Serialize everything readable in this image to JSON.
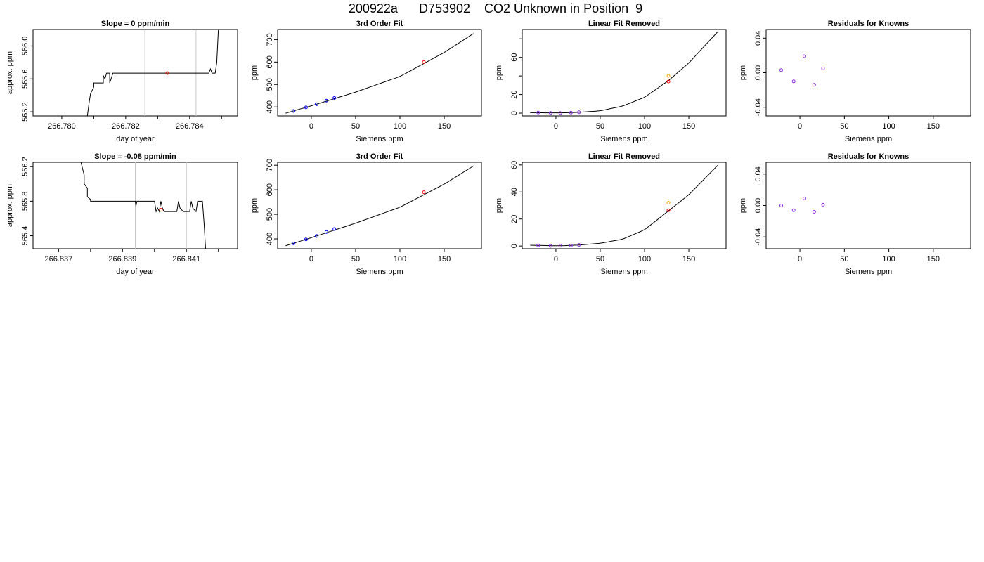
{
  "figure_title": "200922a      D753902    CO2 Unknown in Position  9",
  "colors": {
    "unknown_red": "#ff0000",
    "known_blue": "#0000ff",
    "known_purple": "#8a2be2",
    "orange": "#ffa500",
    "gridline": "#c8c8c8"
  },
  "chart_data": [
    {
      "type": "line",
      "title": "Slope =  0  ppm/min",
      "xlabel": "day of year",
      "ylabel": "approx. ppm",
      "xlim": [
        266.7791,
        266.7855
      ],
      "ylim": [
        565.15,
        566.2
      ],
      "xticks": [
        266.78,
        266.781,
        266.782,
        266.783,
        266.784,
        266.785
      ],
      "xtick_labels": [
        "266.780",
        "",
        "266.782",
        "",
        "266.784",
        ""
      ],
      "yticks": [
        565.2,
        565.6,
        566.0
      ],
      "ytick_labels": [
        "565.2",
        "565.6",
        "566.0"
      ],
      "vlines": [
        266.7826,
        266.7842
      ],
      "line": {
        "x": [
          266.7808,
          266.78085,
          266.7809,
          266.781,
          266.781,
          266.7811,
          266.7812,
          266.7813,
          266.7813,
          266.78135,
          266.7814,
          266.78145,
          266.7815,
          266.7815,
          266.7816,
          266.78165,
          266.7817,
          266.7818,
          266.7818,
          266.7819,
          266.782,
          266.783,
          266.784,
          266.7845,
          266.7846,
          266.78465,
          266.7847,
          266.7847,
          266.7848,
          266.78485,
          266.7849
        ],
        "y": [
          565.15,
          565.3,
          565.42,
          565.5,
          565.55,
          565.55,
          565.55,
          565.55,
          565.64,
          565.6,
          565.67,
          565.67,
          565.67,
          565.55,
          565.67,
          565.67,
          565.67,
          565.67,
          565.67,
          565.67,
          565.67,
          565.67,
          565.67,
          565.67,
          565.67,
          565.72,
          565.67,
          565.67,
          565.67,
          565.8,
          566.2
        ]
      },
      "points": [
        {
          "x": 266.7833,
          "y": 565.67,
          "color": "#ff0000"
        }
      ]
    },
    {
      "type": "scatter",
      "title": "3rd Order Fit",
      "xlabel": "Siemens ppm",
      "ylabel": "ppm",
      "xlim": [
        -38,
        192
      ],
      "ylim": [
        360,
        745
      ],
      "xticks": [
        0,
        50,
        100,
        150
      ],
      "xtick_labels": [
        "0",
        "50",
        "100",
        "150"
      ],
      "yticks": [
        400,
        500,
        600,
        700
      ],
      "ytick_labels": [
        "400",
        "500",
        "600",
        "700"
      ],
      "curve": {
        "x": [
          -29,
          0,
          50,
          100,
          150,
          183
        ],
        "y": [
          372.0,
          405.0,
          466.1,
          535.6,
          642.6,
          727.0
        ]
      },
      "points": [
        {
          "x": -20,
          "y": 382,
          "color": "#0000ff"
        },
        {
          "x": -6,
          "y": 398,
          "color": "#0000ff"
        },
        {
          "x": 6,
          "y": 412,
          "color": "#0000ff"
        },
        {
          "x": 17,
          "y": 428,
          "color": "#0000ff"
        },
        {
          "x": 26,
          "y": 440,
          "color": "#0000ff"
        },
        {
          "x": 127,
          "y": 600,
          "color": "#ff0000"
        }
      ]
    },
    {
      "type": "scatter",
      "title": "Linear Fit Removed",
      "xlabel": "Siemens ppm",
      "ylabel": "ppm",
      "xlim": [
        -38,
        192
      ],
      "ylim": [
        -3,
        90
      ],
      "xticks": [
        0,
        50,
        100,
        150
      ],
      "xtick_labels": [
        "0",
        "50",
        "100",
        "150"
      ],
      "yticks": [
        0,
        20,
        40,
        60,
        80
      ],
      "ytick_labels": [
        "0",
        "20",
        "",
        "60",
        ""
      ],
      "curve": {
        "x": [
          -29,
          -22,
          -10,
          0,
          10,
          25,
          50,
          75,
          100,
          127,
          150,
          183
        ],
        "y": [
          0.5,
          0.5,
          0.3,
          0.3,
          0.4,
          0.8,
          2.5,
          7.5,
          17.0,
          35.0,
          54.0,
          88.0
        ]
      },
      "points": [
        {
          "x": -20,
          "y": 0.6,
          "color": "#8a2be2"
        },
        {
          "x": -6,
          "y": 0.2,
          "color": "#8a2be2"
        },
        {
          "x": 5,
          "y": 0.1,
          "color": "#8a2be2"
        },
        {
          "x": 17,
          "y": 0.5,
          "color": "#8a2be2"
        },
        {
          "x": 26,
          "y": 1.0,
          "color": "#8a2be2"
        },
        {
          "x": 127,
          "y": 40,
          "color": "#ffa500"
        },
        {
          "x": 127,
          "y": 34,
          "color": "#ff0000"
        }
      ]
    },
    {
      "type": "scatter",
      "title": "Residuals for Knowns",
      "xlabel": "Siemens ppm",
      "ylabel": "ppm",
      "xlim": [
        -38,
        192
      ],
      "ylim": [
        -0.05,
        0.05
      ],
      "xticks": [
        0,
        50,
        100,
        150
      ],
      "xtick_labels": [
        "0",
        "50",
        "100",
        "150"
      ],
      "yticks": [
        -0.04,
        0.0,
        0.04
      ],
      "ytick_labels": [
        "-0.04",
        "0.00",
        "0.04"
      ],
      "points": [
        {
          "x": -21,
          "y": 0.003,
          "color": "#8a2be2"
        },
        {
          "x": -7,
          "y": -0.01,
          "color": "#8a2be2"
        },
        {
          "x": 5,
          "y": 0.019,
          "color": "#8a2be2"
        },
        {
          "x": 16,
          "y": -0.014,
          "color": "#8a2be2"
        },
        {
          "x": 26,
          "y": 0.005,
          "color": "#8a2be2"
        }
      ]
    },
    {
      "type": "line",
      "title": "Slope =  -0.08  ppm/min",
      "xlabel": "day of year",
      "ylabel": "approx. ppm",
      "xlim": [
        266.8362,
        266.8426
      ],
      "ylim": [
        565.25,
        566.25
      ],
      "xticks": [
        266.837,
        266.838,
        266.839,
        266.84,
        266.841,
        266.842
      ],
      "xtick_labels": [
        "266.837",
        "",
        "266.839",
        "",
        "266.841",
        ""
      ],
      "yticks": [
        565.4,
        565.8,
        566.2
      ],
      "ytick_labels": [
        "565.4",
        "565.8",
        "566.2"
      ],
      "vlines": [
        266.8394,
        266.841
      ],
      "line": {
        "x": [
          266.8377,
          266.8378,
          266.8378,
          266.8379,
          266.8379,
          266.838,
          266.838,
          266.8384,
          266.8394,
          266.83942,
          266.83945,
          266.8396,
          266.84,
          266.84005,
          266.8401,
          266.84015,
          266.8402,
          266.84025,
          266.8403,
          266.8404,
          266.8406,
          266.8407,
          266.84075,
          266.8408,
          266.8409,
          266.84095,
          266.841,
          266.8411,
          266.84115,
          266.8412,
          266.8413,
          266.84135,
          266.8414,
          266.8415,
          266.84155,
          266.8416
        ],
        "y": [
          566.25,
          566.1,
          566.0,
          565.95,
          565.85,
          565.82,
          565.8,
          565.8,
          565.8,
          565.74,
          565.8,
          565.8,
          565.8,
          565.68,
          565.72,
          565.68,
          565.8,
          565.72,
          565.68,
          565.68,
          565.68,
          565.68,
          565.8,
          565.72,
          565.68,
          565.68,
          565.68,
          565.68,
          565.8,
          565.72,
          565.68,
          565.8,
          565.8,
          565.8,
          565.55,
          565.25
        ]
      },
      "points": [
        {
          "x": 266.8402,
          "y": 565.7,
          "color": "#ff0000"
        }
      ]
    },
    {
      "type": "scatter",
      "title": "3rd Order Fit",
      "xlabel": "Siemens ppm",
      "ylabel": "ppm",
      "xlim": [
        -38,
        192
      ],
      "ylim": [
        360,
        712
      ],
      "xticks": [
        0,
        50,
        100,
        150
      ],
      "xtick_labels": [
        "0",
        "50",
        "100",
        "150"
      ],
      "yticks": [
        400,
        500,
        600,
        700
      ],
      "ytick_labels": [
        "400",
        "500",
        "600",
        "700"
      ],
      "curve": {
        "x": [
          -29,
          0,
          50,
          100,
          150,
          183
        ],
        "y": [
          372.0,
          405.0,
          464.0,
          529.0,
          623.0,
          697.0
        ]
      },
      "points": [
        {
          "x": -20,
          "y": 382,
          "color": "#0000ff"
        },
        {
          "x": -6,
          "y": 398,
          "color": "#0000ff"
        },
        {
          "x": 6,
          "y": 412,
          "color": "#0000ff"
        },
        {
          "x": 17,
          "y": 428,
          "color": "#0000ff"
        },
        {
          "x": 26,
          "y": 440,
          "color": "#0000ff"
        },
        {
          "x": 127,
          "y": 590,
          "color": "#ff0000"
        }
      ]
    },
    {
      "type": "scatter",
      "title": "Linear Fit Removed",
      "xlabel": "Siemens ppm",
      "ylabel": "ppm",
      "xlim": [
        -38,
        192
      ],
      "ylim": [
        -2,
        62
      ],
      "xticks": [
        0,
        50,
        100,
        150
      ],
      "xtick_labels": [
        "0",
        "50",
        "100",
        "150"
      ],
      "yticks": [
        0,
        20,
        40,
        60
      ],
      "ytick_labels": [
        "0",
        "20",
        "40",
        "60"
      ],
      "curve": {
        "x": [
          -29,
          -22,
          -10,
          0,
          10,
          25,
          50,
          75,
          100,
          127,
          150,
          183
        ],
        "y": [
          0.6,
          0.5,
          0.3,
          0.2,
          0.3,
          0.7,
          2.0,
          5.0,
          12.0,
          26.0,
          38.0,
          60.0
        ]
      },
      "points": [
        {
          "x": -20,
          "y": 0.5,
          "color": "#8a2be2"
        },
        {
          "x": -6,
          "y": 0.1,
          "color": "#8a2be2"
        },
        {
          "x": 5,
          "y": 0.2,
          "color": "#8a2be2"
        },
        {
          "x": 17,
          "y": 0.4,
          "color": "#8a2be2"
        },
        {
          "x": 26,
          "y": 0.8,
          "color": "#8a2be2"
        },
        {
          "x": 127,
          "y": 32,
          "color": "#ffa500"
        },
        {
          "x": 127,
          "y": 26.5,
          "color": "#ff0000"
        }
      ]
    },
    {
      "type": "scatter",
      "title": "Residuals for Knowns",
      "xlabel": "Siemens ppm",
      "ylabel": "ppm",
      "xlim": [
        -38,
        192
      ],
      "ylim": [
        -0.055,
        0.055
      ],
      "xticks": [
        0,
        50,
        100,
        150
      ],
      "xtick_labels": [
        "0",
        "50",
        "100",
        "150"
      ],
      "yticks": [
        -0.04,
        0.0,
        0.04
      ],
      "ytick_labels": [
        "-0.04",
        "0.00",
        "0.04"
      ],
      "points": [
        {
          "x": -21,
          "y": 0.0,
          "color": "#8a2be2"
        },
        {
          "x": -7,
          "y": -0.006,
          "color": "#8a2be2"
        },
        {
          "x": 5,
          "y": 0.009,
          "color": "#8a2be2"
        },
        {
          "x": 16,
          "y": -0.008,
          "color": "#8a2be2"
        },
        {
          "x": 26,
          "y": 0.001,
          "color": "#8a2be2"
        }
      ]
    }
  ]
}
